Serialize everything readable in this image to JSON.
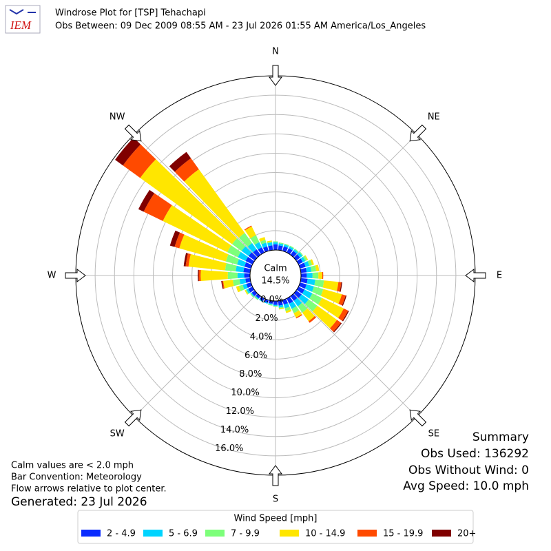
{
  "header": {
    "logo_text": "IEM",
    "title": "Windrose Plot for [TSP] Tehachapi",
    "subtitle": "Obs Between: 09 Dec 2009 08:55 AM - 23 Jul 2026 01:55 AM America/Los_Angeles"
  },
  "chart_data": {
    "type": "windrose",
    "directions": [
      0,
      10,
      20,
      30,
      40,
      50,
      60,
      70,
      80,
      90,
      100,
      110,
      120,
      130,
      140,
      150,
      160,
      170,
      180,
      190,
      200,
      210,
      220,
      230,
      240,
      250,
      260,
      270,
      280,
      290,
      300,
      310,
      320,
      330,
      340,
      350
    ],
    "compass_labels": [
      "N",
      "NE",
      "E",
      "SE",
      "S",
      "SW",
      "W",
      "NW"
    ],
    "calm": {
      "label": "Calm",
      "value": 14.5,
      "value_label": "14.5%"
    },
    "ylim": [
      0,
      18
    ],
    "yticks": [
      {
        "value": 0,
        "label": "0.0%"
      },
      {
        "value": 2,
        "label": "2.0%"
      },
      {
        "value": 4,
        "label": "4.0%"
      },
      {
        "value": 6,
        "label": "6.0%"
      },
      {
        "value": 8,
        "label": "8.0%"
      },
      {
        "value": 10,
        "label": "10.0%"
      },
      {
        "value": 12,
        "label": "12.0%"
      },
      {
        "value": 14,
        "label": "14.0%"
      },
      {
        "value": 16,
        "label": "16.0%"
      }
    ],
    "grid": true,
    "legend_title": "Wind Speed [mph]",
    "series": [
      {
        "name": "2 - 4.9",
        "color": "#0a2bff",
        "values": [
          0.6,
          0.5,
          0.5,
          0.5,
          0.5,
          0.5,
          0.5,
          0.6,
          0.6,
          0.6,
          0.7,
          0.7,
          0.7,
          0.7,
          0.6,
          0.6,
          0.5,
          0.5,
          0.4,
          0.3,
          0.3,
          0.3,
          0.3,
          0.4,
          0.5,
          0.5,
          0.5,
          0.6,
          0.7,
          0.7,
          0.8,
          0.8,
          0.7,
          0.6,
          0.5,
          0.5
        ]
      },
      {
        "name": "5 - 6.9",
        "color": "#00d4ff",
        "values": [
          0.2,
          0.2,
          0.2,
          0.2,
          0.2,
          0.3,
          0.3,
          0.4,
          0.5,
          0.6,
          0.8,
          0.8,
          0.9,
          0.9,
          0.7,
          0.6,
          0.4,
          0.2,
          0.1,
          0.1,
          0.1,
          0.1,
          0.1,
          0.1,
          0.2,
          0.4,
          0.6,
          0.7,
          0.8,
          0.8,
          0.9,
          0.9,
          0.8,
          0.6,
          0.4,
          0.3
        ]
      },
      {
        "name": "7 - 9.9",
        "color": "#7dff7a",
        "values": [
          0.1,
          0.1,
          0.1,
          0.1,
          0.1,
          0.1,
          0.2,
          0.3,
          0.5,
          0.6,
          0.9,
          1.0,
          1.1,
          1.1,
          0.8,
          0.5,
          0.3,
          0.1,
          0.1,
          0.1,
          0,
          0,
          0.1,
          0.1,
          0.1,
          0.4,
          0.7,
          1.0,
          1.1,
          1.2,
          1.2,
          1.2,
          1.3,
          0.8,
          0.3,
          0.1
        ]
      },
      {
        "name": "10 - 14.9",
        "color": "#ffe600",
        "values": [
          0,
          0,
          0,
          0,
          0,
          0,
          0.1,
          0.2,
          0.3,
          0.4,
          1.5,
          2.0,
          2.5,
          2.5,
          1.1,
          0.5,
          0.2,
          0.1,
          0,
          0,
          0,
          0,
          0,
          0,
          0.1,
          0.3,
          1.0,
          2.8,
          3.8,
          5.0,
          7.4,
          11.7,
          8.1,
          1.0,
          0.3,
          0.1
        ]
      },
      {
        "name": "15 - 19.9",
        "color": "#ff4a00",
        "values": [
          0,
          0,
          0,
          0,
          0,
          0,
          0,
          0,
          0,
          0.1,
          0.3,
          0.4,
          0.5,
          0.5,
          0.2,
          0.1,
          0,
          0,
          0,
          0,
          0,
          0,
          0,
          0,
          0,
          0,
          0.1,
          0.2,
          0.3,
          0.5,
          2.2,
          2.2,
          1.4,
          0.1,
          0,
          0
        ]
      },
      {
        "name": "20+",
        "color": "#800000",
        "values": [
          0,
          0,
          0,
          0,
          0,
          0,
          0,
          0,
          0,
          0,
          0.1,
          0.1,
          0.1,
          0.1,
          0,
          0,
          0,
          0,
          0,
          0,
          0,
          0,
          0,
          0,
          0,
          0,
          0.1,
          0.1,
          0.2,
          0.5,
          0.6,
          1.0,
          0.8,
          0,
          0,
          0
        ]
      }
    ]
  },
  "notes": [
    "Calm values are < 2.0 mph",
    "Bar Convention: Meteorology",
    "Flow arrows relative to plot center.",
    "Generated: 23 Jul 2026"
  ],
  "summary": [
    "Summary",
    "Obs Used: 136292",
    "Obs Without Wind: 0",
    "Avg Speed: 10.0 mph"
  ]
}
